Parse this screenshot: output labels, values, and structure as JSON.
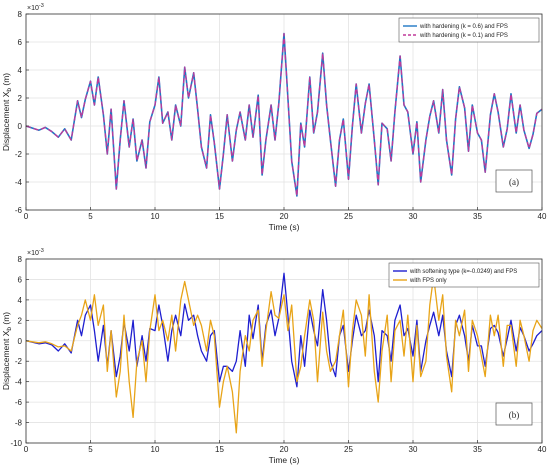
{
  "colors": {
    "hardening_06": "#1f77c4",
    "hardening_01": "#c0399a",
    "softening": "#1f1fd0",
    "fps_only": "#e8a418",
    "grid": "#e3e3e3",
    "axis": "#333333"
  },
  "chart_data": [
    {
      "type": "line",
      "panel_label": "(a)",
      "xlabel": "Time (s)",
      "ylabel": "Displacement X",
      "ylabel_sub": "b",
      "ylabel_unit": "(m)",
      "yexponent": "×10",
      "yexponent_power": "-3",
      "xlim": [
        0,
        40
      ],
      "ylim": [
        -6,
        8
      ],
      "xticks": [
        0,
        5,
        10,
        15,
        20,
        25,
        30,
        35,
        40
      ],
      "yticks": [
        -6,
        -4,
        -2,
        0,
        2,
        4,
        6,
        8
      ],
      "grid": true,
      "legend_position": "top-right",
      "x": [
        0,
        1,
        1.5,
        2,
        2.5,
        3,
        3.5,
        4,
        4.3,
        4.6,
        5,
        5.3,
        5.6,
        6,
        6.3,
        6.6,
        7,
        7.3,
        7.6,
        8,
        8.3,
        8.6,
        9,
        9.3,
        9.6,
        10,
        10.3,
        10.6,
        11,
        11.3,
        11.6,
        12,
        12.3,
        12.6,
        13,
        13.3,
        13.6,
        14,
        14.3,
        14.6,
        15,
        15.3,
        15.6,
        16,
        16.3,
        16.6,
        17,
        17.3,
        17.6,
        18,
        18.3,
        18.6,
        19,
        19.3,
        19.6,
        20,
        20.3,
        20.6,
        21,
        21.3,
        21.6,
        22,
        22.3,
        22.6,
        23,
        23.3,
        23.6,
        24,
        24.3,
        24.6,
        25,
        25.3,
        25.6,
        26,
        26.3,
        26.6,
        27,
        27.3,
        27.6,
        28,
        28.3,
        28.6,
        29,
        29.3,
        29.6,
        30,
        30.3,
        30.6,
        31,
        31.3,
        31.6,
        32,
        32.3,
        32.6,
        33,
        33.3,
        33.6,
        34,
        34.3,
        34.6,
        35,
        35.3,
        35.6,
        36,
        36.3,
        36.6,
        37,
        37.3,
        37.6,
        38,
        38.3,
        38.6,
        39,
        39.3,
        39.6,
        40
      ],
      "series": [
        {
          "name": "with hardening (k = 0.6) and FPS",
          "values": [
            0,
            -0.3,
            -0.1,
            -0.4,
            -0.8,
            -0.2,
            -1.0,
            1.8,
            0.6,
            1.9,
            3.2,
            1.5,
            3.5,
            0.8,
            -2.0,
            1.2,
            -4.5,
            -1.0,
            1.8,
            -1.5,
            0.5,
            -2.5,
            -1.0,
            -3.0,
            0.3,
            1.5,
            3.5,
            0.2,
            1.0,
            -1.0,
            1.5,
            0.0,
            4.2,
            2.0,
            3.8,
            1.2,
            -1.5,
            -3.0,
            0.8,
            -1.2,
            -4.5,
            -2.0,
            0.8,
            -2.5,
            -0.3,
            1.0,
            -1.0,
            1.5,
            -0.8,
            2.2,
            -3.5,
            -1.0,
            1.5,
            -1.0,
            1.6,
            6.6,
            2.0,
            -2.5,
            -5.0,
            0.2,
            -1.5,
            3.5,
            -0.5,
            1.0,
            5.2,
            1.5,
            -1.0,
            -4.3,
            -1.0,
            0.5,
            -3.8,
            0.0,
            3.0,
            -0.5,
            1.6,
            3.0,
            -1.0,
            -4.2,
            0.2,
            -0.2,
            -2.5,
            1.0,
            5.0,
            1.5,
            1.0,
            -2.0,
            0.3,
            -4.0,
            -1.0,
            0.7,
            1.8,
            -0.5,
            2.6,
            -1.0,
            -3.5,
            0.5,
            2.8,
            1.3,
            -1.8,
            1.5,
            -0.5,
            -1.0,
            -3.3,
            0.8,
            2.3,
            1.0,
            -1.5,
            -0.2,
            2.3,
            -0.5,
            1.5,
            -0.3,
            -1.6,
            -0.6,
            0.9,
            1.2
          ]
        },
        {
          "name": "with hardening (k = 0.1) and FPS",
          "values": [
            0,
            -0.3,
            -0.1,
            -0.4,
            -0.8,
            -0.2,
            -1.0,
            1.8,
            0.6,
            1.9,
            3.2,
            1.5,
            3.5,
            0.8,
            -2.0,
            1.2,
            -4.5,
            -1.0,
            1.8,
            -1.5,
            0.5,
            -2.5,
            -1.0,
            -3.0,
            0.3,
            1.5,
            3.5,
            0.2,
            1.0,
            -1.0,
            1.5,
            0.0,
            4.2,
            2.0,
            3.8,
            1.2,
            -1.5,
            -3.0,
            0.8,
            -1.2,
            -4.5,
            -2.0,
            0.8,
            -2.5,
            -0.3,
            1.0,
            -1.0,
            1.5,
            -0.8,
            2.2,
            -3.5,
            -1.0,
            1.5,
            -1.0,
            1.6,
            6.6,
            2.0,
            -2.5,
            -5.0,
            0.2,
            -1.5,
            3.5,
            -0.5,
            1.0,
            5.2,
            1.5,
            -1.0,
            -4.3,
            -1.0,
            0.5,
            -3.8,
            0.0,
            3.0,
            -0.5,
            1.6,
            3.0,
            -1.0,
            -4.2,
            0.2,
            -0.2,
            -2.5,
            1.0,
            5.0,
            1.5,
            1.0,
            -2.0,
            0.3,
            -4.0,
            -1.0,
            0.7,
            1.8,
            -0.5,
            2.6,
            -1.0,
            -3.5,
            0.5,
            2.8,
            1.3,
            -1.8,
            1.5,
            -0.5,
            -1.0,
            -3.3,
            0.8,
            2.3,
            1.0,
            -1.5,
            -0.2,
            2.3,
            -0.5,
            1.5,
            -0.3,
            -1.6,
            -0.6,
            0.9,
            1.2
          ]
        }
      ]
    },
    {
      "type": "line",
      "panel_label": "(b)",
      "xlabel": "Time (s)",
      "ylabel": "Displacement X",
      "ylabel_sub": "b",
      "ylabel_unit": "(m)",
      "yexponent": "×10",
      "yexponent_power": "-3",
      "xlim": [
        0,
        40
      ],
      "ylim": [
        -10,
        8
      ],
      "xticks": [
        0,
        5,
        10,
        15,
        20,
        25,
        30,
        35,
        40
      ],
      "yticks": [
        -10,
        -8,
        -6,
        -4,
        -2,
        0,
        2,
        4,
        6,
        8
      ],
      "grid": true,
      "legend_position": "top-right",
      "x": [
        0,
        1,
        1.5,
        2,
        2.5,
        3,
        3.5,
        4,
        4.3,
        4.6,
        5,
        5.3,
        5.6,
        6,
        6.3,
        6.6,
        7,
        7.3,
        7.6,
        8,
        8.3,
        8.6,
        9,
        9.3,
        9.6,
        10,
        10.3,
        10.6,
        11,
        11.3,
        11.6,
        12,
        12.3,
        12.6,
        13,
        13.3,
        13.6,
        14,
        14.3,
        14.6,
        15,
        15.3,
        15.6,
        16,
        16.3,
        16.6,
        17,
        17.3,
        17.6,
        18,
        18.3,
        18.6,
        19,
        19.3,
        19.6,
        20,
        20.3,
        20.6,
        21,
        21.3,
        21.6,
        22,
        22.3,
        22.6,
        23,
        23.3,
        23.6,
        24,
        24.3,
        24.6,
        25,
        25.3,
        25.6,
        26,
        26.3,
        26.6,
        27,
        27.3,
        27.6,
        28,
        28.3,
        28.6,
        29,
        29.3,
        29.6,
        30,
        30.3,
        30.6,
        31,
        31.3,
        31.6,
        32,
        32.3,
        32.6,
        33,
        33.3,
        33.6,
        34,
        34.3,
        34.6,
        35,
        35.3,
        35.6,
        36,
        36.3,
        36.6,
        37,
        37.3,
        37.6,
        38,
        38.3,
        38.6,
        39,
        39.3,
        39.6,
        40
      ],
      "series": [
        {
          "name": "with softening type (k=-0.0249) and FPS",
          "values": [
            0,
            -0.3,
            -0.2,
            -0.4,
            -1.0,
            -0.3,
            -1.2,
            2.0,
            0.5,
            2.5,
            3.5,
            1.0,
            -2.0,
            1.5,
            -2.5,
            1.0,
            -3.5,
            -1.5,
            1.8,
            -1.0,
            2.0,
            -2.5,
            0.5,
            -2.0,
            1.2,
            1.0,
            3.5,
            1.5,
            -2.0,
            1.0,
            2.5,
            0.5,
            3.6,
            2.0,
            2.5,
            0.5,
            -1.0,
            -2.0,
            0.5,
            1.0,
            -4.0,
            -2.5,
            -2.5,
            -3.0,
            -2.0,
            1.0,
            -2.5,
            2.5,
            0.2,
            3.5,
            -2.0,
            1.5,
            3.0,
            0.5,
            2.2,
            6.6,
            2.5,
            -2.0,
            -4.5,
            0.5,
            -2.5,
            3.0,
            1.0,
            -0.5,
            5.0,
            2.0,
            -2.0,
            -3.5,
            0.5,
            1.5,
            -3.0,
            0.0,
            2.5,
            0.5,
            1.0,
            3.0,
            0.5,
            -4.0,
            1.0,
            0.5,
            -2.0,
            2.0,
            3.5,
            0.5,
            1.2,
            -1.5,
            2.0,
            -3.0,
            0.0,
            1.5,
            2.8,
            0.5,
            2.5,
            -1.0,
            -3.5,
            1.5,
            2.5,
            0.5,
            -2.0,
            1.5,
            -0.5,
            -0.5,
            -2.5,
            1.2,
            1.5,
            0.8,
            -1.5,
            0.2,
            2.0,
            -1.0,
            1.3,
            0.5,
            -1.0,
            -0.3,
            0.5,
            1.0
          ]
        },
        {
          "name": "with FPS only",
          "values": [
            0,
            -0.2,
            -0.1,
            -0.3,
            -0.6,
            -0.5,
            -1.0,
            1.5,
            2.5,
            4.0,
            2.0,
            4.5,
            1.5,
            3.5,
            -3.0,
            1.0,
            -5.5,
            -3.0,
            2.5,
            -4.0,
            -7.5,
            -2.0,
            0.0,
            -4.0,
            1.0,
            4.5,
            1.0,
            2.0,
            0.0,
            2.5,
            -1.0,
            4.0,
            5.8,
            4.0,
            1.5,
            2.5,
            1.5,
            -1.0,
            2.0,
            0.5,
            -6.5,
            -4.0,
            -2.5,
            -5.0,
            -9.0,
            -3.0,
            0.5,
            -1.0,
            2.0,
            3.0,
            -2.5,
            1.0,
            4.8,
            2.5,
            2.2,
            4.5,
            1.0,
            3.5,
            -4.0,
            -2.5,
            0.5,
            4.0,
            2.0,
            -4.0,
            2.8,
            -1.0,
            -3.0,
            -2.0,
            0.5,
            3.0,
            -4.5,
            1.0,
            4.0,
            2.5,
            -1.5,
            4.5,
            -3.0,
            -6.0,
            -1.0,
            2.5,
            -4.0,
            1.0,
            2.0,
            -1.5,
            2.5,
            -4.0,
            1.5,
            -3.5,
            -2.0,
            3.5,
            6.3,
            2.0,
            4.5,
            -1.5,
            -5.0,
            2.0,
            0.5,
            3.0,
            -3.0,
            2.0,
            0.5,
            -1.5,
            -3.5,
            2.5,
            0.5,
            2.5,
            -2.5,
            1.5,
            1.5,
            -2.5,
            2.0,
            0.5,
            -2.0,
            1.0,
            2.0,
            1.2
          ]
        }
      ]
    }
  ]
}
